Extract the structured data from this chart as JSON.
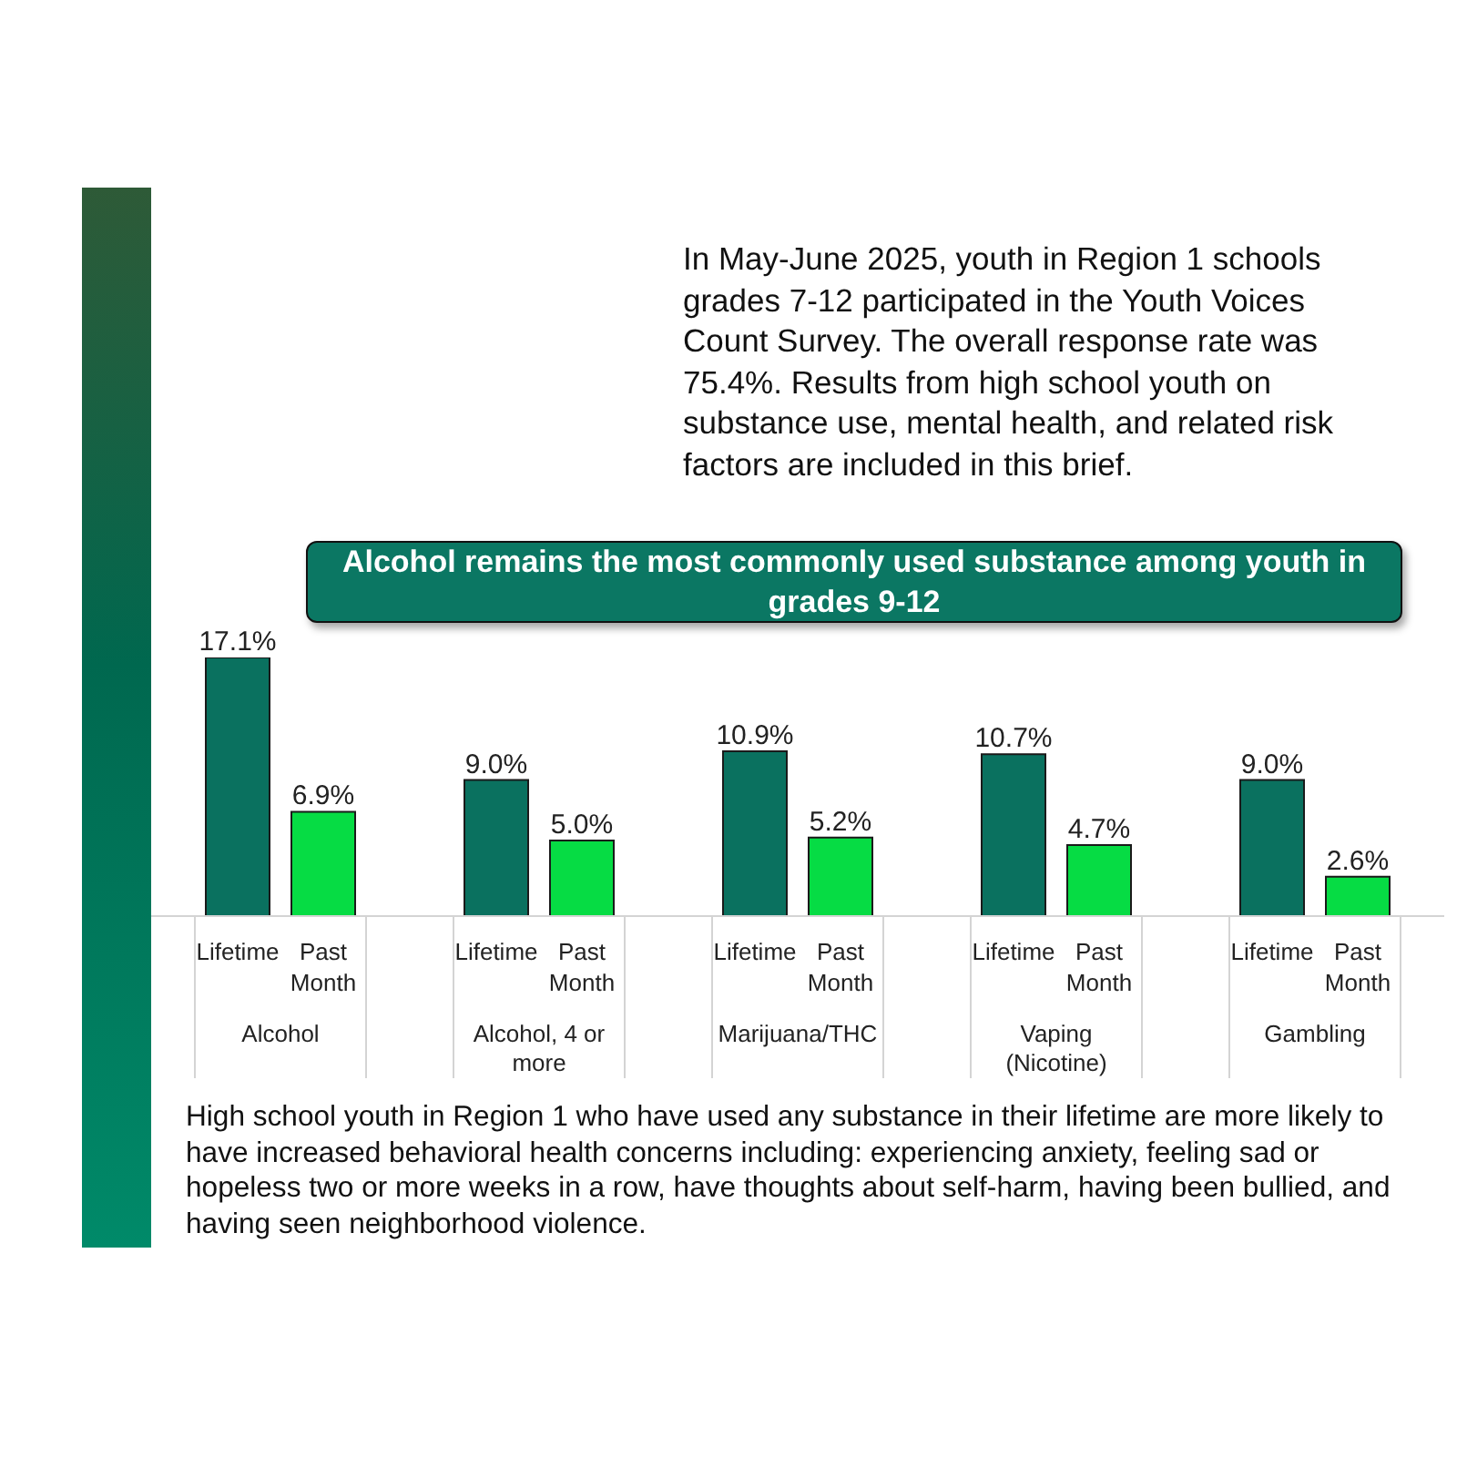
{
  "chart_data": {
    "type": "bar",
    "title": "Alcohol remains the most commonly used substance among youth in grades 9-12",
    "categories": [
      "Alcohol",
      "Alcohol, 4 or more",
      "Marijuana/THC",
      "Vaping (Nicotine)",
      "Gambling"
    ],
    "series": [
      {
        "name": "Lifetime",
        "color": "#0a715f",
        "values": [
          17.1,
          9.0,
          10.9,
          10.7,
          9.0
        ],
        "value_labels": [
          "17.1%",
          "9.0%",
          "10.9%",
          "10.7%",
          "9.0%"
        ]
      },
      {
        "name": "Past Month",
        "color": "#06dc44",
        "values": [
          6.9,
          5.0,
          5.2,
          4.7,
          2.6
        ],
        "value_labels": [
          "6.9%",
          "5.0%",
          "5.2%",
          "4.7%",
          "2.6%"
        ]
      }
    ],
    "annotations": [
      "In May-June 2025, youth in Region 1 schools grades 7-12 participated in the Youth Voices Count Survey. The overall response rate was 75.4%. Results from high school youth on substance use, mental health, and related risk factors are included in this brief.",
      "High school youth in Region 1 who have used any substance in their lifetime are more likely to have increased behavioral health concerns including: experiencing anxiety, feeling sad or hopeless two or more weeks in a row, have thoughts about self-harm, having been bullied, and having seen neighborhood violence."
    ]
  }
}
